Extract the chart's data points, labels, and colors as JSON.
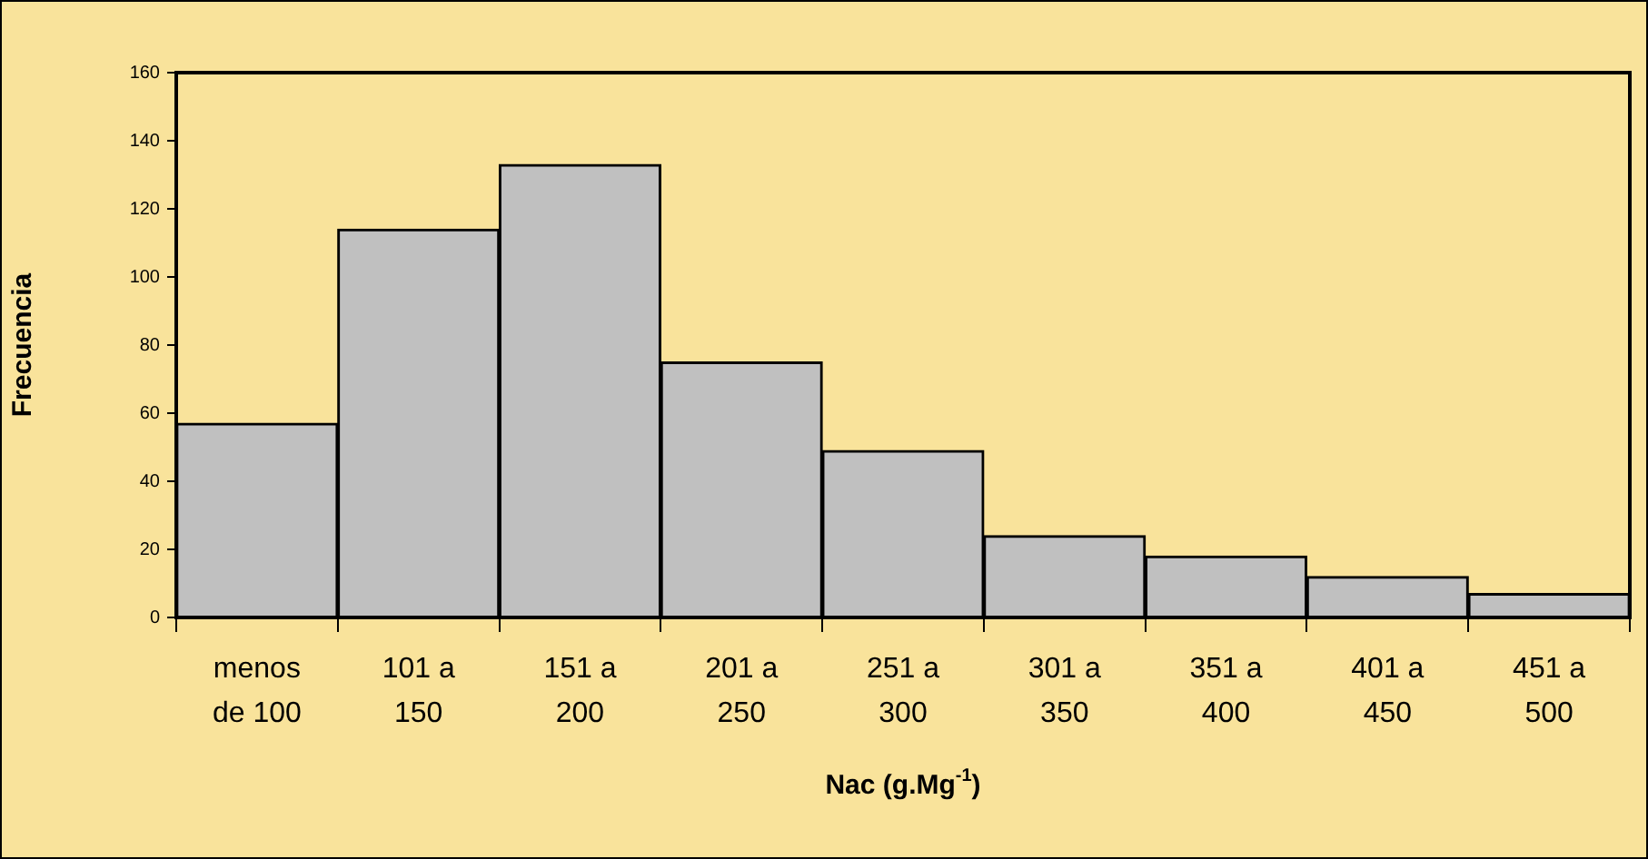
{
  "chart_data": {
    "type": "bar",
    "categories": [
      "menos\nde 100",
      "101 a\n150",
      "151 a\n200",
      "201 a\n250",
      "251 a\n300",
      "301 a\n350",
      "351 a\n400",
      "401 a\n450",
      "451 a\n500"
    ],
    "values": [
      57,
      114,
      133,
      75,
      49,
      24,
      18,
      12,
      7
    ],
    "color": "#c0c0c0",
    "xlabel": "Nac (g.Mg$^{-1}$)",
    "ylabel": "Frecuencia",
    "ylim": [
      0,
      160
    ],
    "yticks": [
      0,
      20,
      40,
      60,
      80,
      100,
      120,
      140,
      160
    ],
    "grid": false,
    "legend": false
  }
}
